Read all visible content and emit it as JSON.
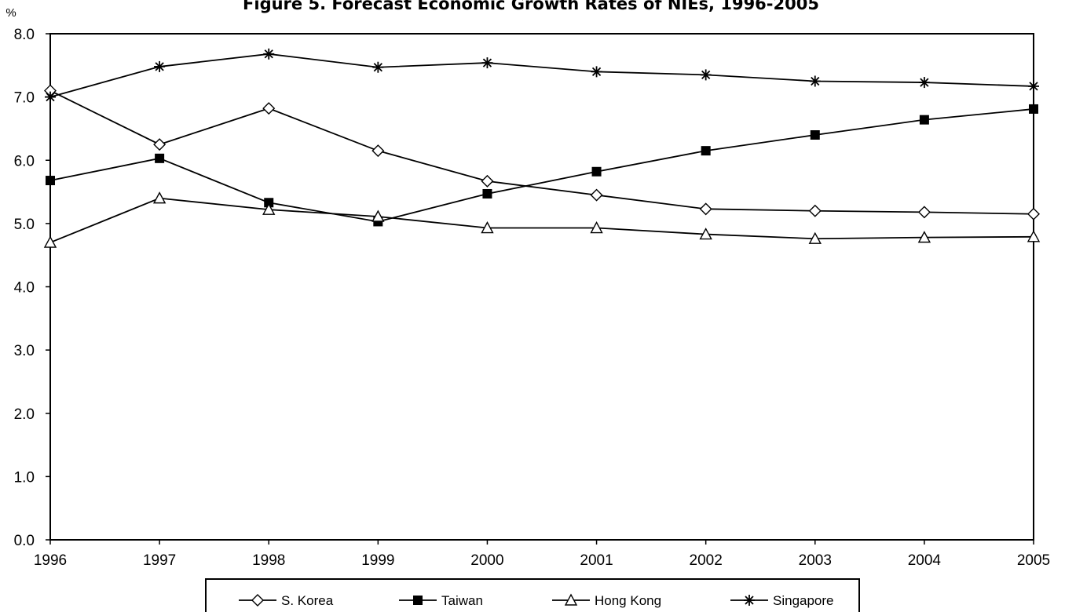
{
  "chart_data": {
    "type": "line",
    "title": "Figure 5. Forecast Economic Growth Rates of NIEs, 1996-2005",
    "ylabel": "%",
    "xlabel": "",
    "categories": [
      "1996",
      "1997",
      "1998",
      "1999",
      "2000",
      "2001",
      "2002",
      "2003",
      "2004",
      "2005"
    ],
    "ylim": [
      0,
      8
    ],
    "yticks": [
      "0.0",
      "1.0",
      "2.0",
      "3.0",
      "4.0",
      "5.0",
      "6.0",
      "7.0",
      "8.0"
    ],
    "grid": false,
    "legend_position": "bottom",
    "series": [
      {
        "name": "S. Korea",
        "marker": "diamond-open",
        "color": "#000000",
        "values": [
          7.1,
          6.25,
          6.82,
          6.15,
          5.67,
          5.45,
          5.23,
          5.2,
          5.18,
          5.15
        ]
      },
      {
        "name": "Taiwan",
        "marker": "square-filled",
        "color": "#000000",
        "values": [
          5.68,
          6.03,
          5.33,
          5.03,
          5.47,
          5.82,
          6.15,
          6.4,
          6.64,
          6.81
        ]
      },
      {
        "name": "Hong Kong",
        "marker": "triangle-open",
        "color": "#000000",
        "values": [
          4.7,
          5.4,
          5.22,
          5.11,
          4.93,
          4.93,
          4.83,
          4.76,
          4.78,
          4.79
        ]
      },
      {
        "name": "Singapore",
        "marker": "asterisk",
        "color": "#000000",
        "values": [
          7.0,
          7.48,
          7.68,
          7.47,
          7.54,
          7.4,
          7.35,
          7.25,
          7.23,
          7.17
        ]
      }
    ]
  }
}
